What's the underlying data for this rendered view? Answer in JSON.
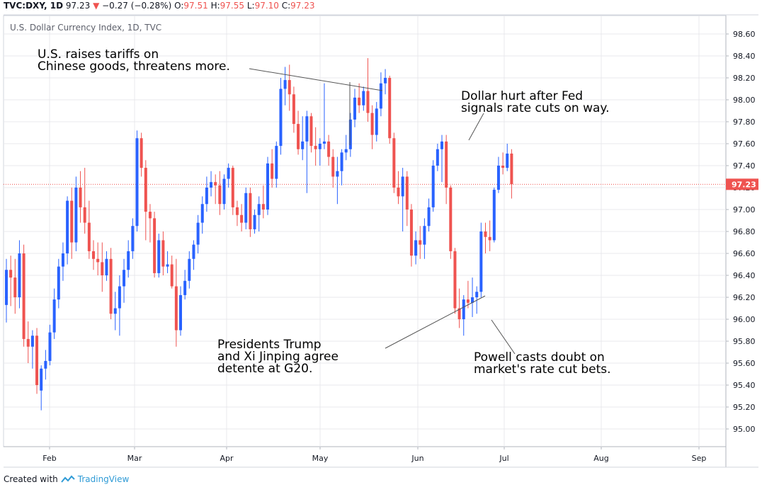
{
  "header": {
    "symbol": "TVC:DXY, 1D",
    "last": "97.23",
    "change": "−0.27 (−0.28%)",
    "o_label": "O:",
    "o_val": "97.51",
    "h_label": "H:",
    "h_val": "97.55",
    "l_label": "L:",
    "l_val": "97.10",
    "c_label": "C:",
    "c_val": "97.23",
    "arrow_icon": "down-triangle-icon"
  },
  "subtitle": "U.S. Dollar Currency Index, 1D, TVC",
  "annotations": {
    "tariffs": "U.S. raises tariffs on\nChinese goods, threatens more.",
    "fed": "Dollar hurt after Fed\nsignals rate cuts on way.",
    "g20": "Presidents Trump\nand Xi Jinping agree\ndetente at G20.",
    "powell": "Powell casts doubt on\nmarket's rate cut bets."
  },
  "footer": {
    "created": "Created with",
    "brand": "TradingView",
    "logo_icon": "tradingview-logo-icon"
  },
  "colors": {
    "up": "#2962ff",
    "down": "#ef5350",
    "grid": "#e8e9ec",
    "axis_text": "#131722",
    "last_price_bg": "#ef5350"
  },
  "chart_data": {
    "type": "candlestick",
    "title": "U.S. Dollar Currency Index, 1D, TVC",
    "ylim": [
      94.8,
      98.7
    ],
    "y_ticks": [
      "95.00",
      "95.20",
      "95.40",
      "95.60",
      "95.80",
      "96.00",
      "96.20",
      "96.40",
      "96.60",
      "96.80",
      "97.00",
      "97.20",
      "97.40",
      "97.60",
      "97.80",
      "98.00",
      "98.20",
      "98.40",
      "98.60"
    ],
    "x_ticks": [
      "Feb",
      "Mar",
      "Apr",
      "May",
      "Jun",
      "Jul",
      "Aug",
      "Sep"
    ],
    "last_price": "97.23",
    "grid": true,
    "candles": [
      {
        "o": 96.13,
        "h": 96.55,
        "l": 95.97,
        "c": 96.45
      },
      {
        "o": 96.45,
        "h": 96.58,
        "l": 96.12,
        "c": 96.38
      },
      {
        "o": 96.38,
        "h": 96.55,
        "l": 96.05,
        "c": 96.2
      },
      {
        "o": 96.2,
        "h": 96.72,
        "l": 96.1,
        "c": 96.6
      },
      {
        "o": 96.6,
        "h": 96.68,
        "l": 95.75,
        "c": 95.82
      },
      {
        "o": 95.82,
        "h": 95.98,
        "l": 95.6,
        "c": 95.75
      },
      {
        "o": 95.75,
        "h": 95.9,
        "l": 95.55,
        "c": 95.85
      },
      {
        "o": 95.85,
        "h": 95.92,
        "l": 95.32,
        "c": 95.4
      },
      {
        "o": 95.35,
        "h": 95.58,
        "l": 95.17,
        "c": 95.55
      },
      {
        "o": 95.55,
        "h": 95.72,
        "l": 95.45,
        "c": 95.62
      },
      {
        "o": 95.62,
        "h": 95.95,
        "l": 95.58,
        "c": 95.88
      },
      {
        "o": 95.88,
        "h": 96.28,
        "l": 95.82,
        "c": 96.18
      },
      {
        "o": 96.18,
        "h": 96.55,
        "l": 96.1,
        "c": 96.48
      },
      {
        "o": 96.48,
        "h": 96.7,
        "l": 96.35,
        "c": 96.6
      },
      {
        "o": 96.6,
        "h": 97.12,
        "l": 96.5,
        "c": 97.08
      },
      {
        "o": 97.08,
        "h": 97.2,
        "l": 96.55,
        "c": 96.7
      },
      {
        "o": 96.7,
        "h": 97.3,
        "l": 96.62,
        "c": 97.2
      },
      {
        "o": 97.2,
        "h": 97.35,
        "l": 96.88,
        "c": 97.02
      },
      {
        "o": 97.02,
        "h": 97.38,
        "l": 96.78,
        "c": 96.88
      },
      {
        "o": 96.88,
        "h": 97.08,
        "l": 96.55,
        "c": 96.62
      },
      {
        "o": 96.62,
        "h": 96.72,
        "l": 96.45,
        "c": 96.55
      },
      {
        "o": 96.55,
        "h": 96.7,
        "l": 96.4,
        "c": 96.52
      },
      {
        "o": 96.52,
        "h": 96.7,
        "l": 96.25,
        "c": 96.4
      },
      {
        "o": 96.4,
        "h": 96.62,
        "l": 96.35,
        "c": 96.55
      },
      {
        "o": 96.55,
        "h": 96.65,
        "l": 96.0,
        "c": 96.05
      },
      {
        "o": 96.05,
        "h": 96.25,
        "l": 95.9,
        "c": 96.1
      },
      {
        "o": 96.1,
        "h": 96.4,
        "l": 95.85,
        "c": 96.3
      },
      {
        "o": 96.3,
        "h": 96.55,
        "l": 96.15,
        "c": 96.45
      },
      {
        "o": 96.45,
        "h": 96.72,
        "l": 96.38,
        "c": 96.62
      },
      {
        "o": 96.62,
        "h": 96.92,
        "l": 96.55,
        "c": 96.85
      },
      {
        "o": 96.85,
        "h": 97.72,
        "l": 96.8,
        "c": 97.65
      },
      {
        "o": 97.65,
        "h": 97.7,
        "l": 97.3,
        "c": 97.38
      },
      {
        "o": 97.38,
        "h": 97.45,
        "l": 96.72,
        "c": 96.98
      },
      {
        "o": 96.98,
        "h": 97.05,
        "l": 96.7,
        "c": 96.92
      },
      {
        "o": 96.92,
        "h": 96.98,
        "l": 96.38,
        "c": 96.42
      },
      {
        "o": 96.42,
        "h": 96.78,
        "l": 96.38,
        "c": 96.72
      },
      {
        "o": 96.72,
        "h": 96.8,
        "l": 96.4,
        "c": 96.48
      },
      {
        "o": 96.48,
        "h": 96.62,
        "l": 96.42,
        "c": 96.5
      },
      {
        "o": 96.5,
        "h": 96.58,
        "l": 96.28,
        "c": 96.3
      },
      {
        "o": 96.3,
        "h": 96.55,
        "l": 95.75,
        "c": 95.9
      },
      {
        "o": 95.9,
        "h": 96.3,
        "l": 95.85,
        "c": 96.22
      },
      {
        "o": 96.22,
        "h": 96.45,
        "l": 96.18,
        "c": 96.35
      },
      {
        "o": 96.35,
        "h": 96.62,
        "l": 96.28,
        "c": 96.55
      },
      {
        "o": 96.55,
        "h": 96.72,
        "l": 96.45,
        "c": 96.68
      },
      {
        "o": 96.68,
        "h": 96.95,
        "l": 96.6,
        "c": 96.88
      },
      {
        "o": 96.88,
        "h": 97.12,
        "l": 96.78,
        "c": 97.05
      },
      {
        "o": 97.05,
        "h": 97.3,
        "l": 96.98,
        "c": 97.2
      },
      {
        "o": 97.2,
        "h": 97.35,
        "l": 97.12,
        "c": 97.25
      },
      {
        "o": 97.25,
        "h": 97.32,
        "l": 97.05,
        "c": 97.22
      },
      {
        "o": 97.22,
        "h": 97.35,
        "l": 96.95,
        "c": 97.05
      },
      {
        "o": 97.05,
        "h": 97.32,
        "l": 97.0,
        "c": 97.28
      },
      {
        "o": 97.28,
        "h": 97.42,
        "l": 97.2,
        "c": 97.38
      },
      {
        "o": 97.38,
        "h": 97.4,
        "l": 96.95,
        "c": 97.02
      },
      {
        "o": 97.02,
        "h": 97.08,
        "l": 96.85,
        "c": 96.95
      },
      {
        "o": 96.95,
        "h": 97.05,
        "l": 96.8,
        "c": 96.88
      },
      {
        "o": 96.88,
        "h": 97.2,
        "l": 96.82,
        "c": 97.15
      },
      {
        "o": 97.15,
        "h": 97.2,
        "l": 96.75,
        "c": 96.82
      },
      {
        "o": 96.82,
        "h": 97.0,
        "l": 96.78,
        "c": 96.95
      },
      {
        "o": 96.95,
        "h": 97.12,
        "l": 96.8,
        "c": 97.05
      },
      {
        "o": 97.05,
        "h": 97.22,
        "l": 96.92,
        "c": 97.0
      },
      {
        "o": 97.0,
        "h": 97.48,
        "l": 96.95,
        "c": 97.42
      },
      {
        "o": 97.42,
        "h": 97.55,
        "l": 97.2,
        "c": 97.28
      },
      {
        "o": 97.28,
        "h": 97.62,
        "l": 97.2,
        "c": 97.58
      },
      {
        "o": 97.58,
        "h": 98.2,
        "l": 97.5,
        "c": 98.1
      },
      {
        "o": 98.1,
        "h": 98.3,
        "l": 97.95,
        "c": 98.18
      },
      {
        "o": 98.18,
        "h": 98.32,
        "l": 97.9,
        "c": 98.05
      },
      {
        "o": 98.05,
        "h": 98.12,
        "l": 97.7,
        "c": 97.78
      },
      {
        "o": 97.78,
        "h": 97.9,
        "l": 97.5,
        "c": 97.55
      },
      {
        "o": 97.55,
        "h": 97.85,
        "l": 97.45,
        "c": 97.62
      },
      {
        "o": 97.62,
        "h": 97.9,
        "l": 97.15,
        "c": 97.85
      },
      {
        "o": 97.85,
        "h": 97.88,
        "l": 97.52,
        "c": 97.58
      },
      {
        "o": 97.58,
        "h": 97.75,
        "l": 97.4,
        "c": 97.55
      },
      {
        "o": 97.55,
        "h": 97.65,
        "l": 97.4,
        "c": 97.6
      },
      {
        "o": 97.6,
        "h": 98.15,
        "l": 97.55,
        "c": 97.62
      },
      {
        "o": 97.62,
        "h": 97.68,
        "l": 97.4,
        "c": 97.48
      },
      {
        "o": 97.48,
        "h": 97.55,
        "l": 97.2,
        "c": 97.3
      },
      {
        "o": 97.3,
        "h": 97.48,
        "l": 97.05,
        "c": 97.35
      },
      {
        "o": 97.35,
        "h": 97.55,
        "l": 97.22,
        "c": 97.52
      },
      {
        "o": 97.52,
        "h": 97.68,
        "l": 97.45,
        "c": 97.55
      },
      {
        "o": 97.55,
        "h": 97.88,
        "l": 97.48,
        "c": 97.82
      },
      {
        "o": 97.82,
        "h": 98.1,
        "l": 97.75,
        "c": 98.02
      },
      {
        "o": 98.02,
        "h": 98.15,
        "l": 97.88,
        "c": 97.95
      },
      {
        "o": 97.95,
        "h": 98.12,
        "l": 97.9,
        "c": 98.08
      },
      {
        "o": 98.08,
        "h": 98.38,
        "l": 97.8,
        "c": 97.88
      },
      {
        "o": 97.88,
        "h": 97.95,
        "l": 97.55,
        "c": 97.68
      },
      {
        "o": 97.68,
        "h": 97.98,
        "l": 97.62,
        "c": 97.92
      },
      {
        "o": 97.92,
        "h": 98.25,
        "l": 97.85,
        "c": 98.15
      },
      {
        "o": 98.15,
        "h": 98.28,
        "l": 98.05,
        "c": 98.2
      },
      {
        "o": 98.2,
        "h": 98.22,
        "l": 97.6,
        "c": 97.65
      },
      {
        "o": 97.65,
        "h": 97.7,
        "l": 97.15,
        "c": 97.2
      },
      {
        "o": 97.2,
        "h": 97.35,
        "l": 97.05,
        "c": 97.12
      },
      {
        "o": 97.12,
        "h": 97.38,
        "l": 96.8,
        "c": 97.3
      },
      {
        "o": 97.3,
        "h": 97.35,
        "l": 96.85,
        "c": 97.0
      },
      {
        "o": 97.0,
        "h": 97.05,
        "l": 96.48,
        "c": 96.58
      },
      {
        "o": 96.58,
        "h": 96.8,
        "l": 96.5,
        "c": 96.72
      },
      {
        "o": 96.72,
        "h": 96.85,
        "l": 96.55,
        "c": 96.68
      },
      {
        "o": 96.68,
        "h": 96.92,
        "l": 96.55,
        "c": 96.85
      },
      {
        "o": 96.85,
        "h": 97.1,
        "l": 96.8,
        "c": 97.02
      },
      {
        "o": 97.02,
        "h": 97.45,
        "l": 96.98,
        "c": 97.4
      },
      {
        "o": 97.4,
        "h": 97.6,
        "l": 97.35,
        "c": 97.55
      },
      {
        "o": 97.55,
        "h": 97.68,
        "l": 97.25,
        "c": 97.62
      },
      {
        "o": 97.62,
        "h": 97.68,
        "l": 97.05,
        "c": 97.2
      },
      {
        "o": 97.2,
        "h": 97.22,
        "l": 96.55,
        "c": 96.62
      },
      {
        "o": 96.62,
        "h": 96.65,
        "l": 96.05,
        "c": 96.1
      },
      {
        "o": 96.1,
        "h": 96.28,
        "l": 95.92,
        "c": 96.0
      },
      {
        "o": 96.0,
        "h": 96.22,
        "l": 95.85,
        "c": 96.18
      },
      {
        "o": 96.18,
        "h": 96.35,
        "l": 96.1,
        "c": 96.15
      },
      {
        "o": 96.15,
        "h": 96.38,
        "l": 96.02,
        "c": 96.2
      },
      {
        "o": 96.2,
        "h": 96.3,
        "l": 96.05,
        "c": 96.25
      },
      {
        "o": 96.25,
        "h": 96.88,
        "l": 96.2,
        "c": 96.8
      },
      {
        "o": 96.8,
        "h": 96.88,
        "l": 96.6,
        "c": 96.75
      },
      {
        "o": 96.75,
        "h": 96.9,
        "l": 96.62,
        "c": 96.72
      },
      {
        "o": 96.72,
        "h": 97.2,
        "l": 96.7,
        "c": 97.18
      },
      {
        "o": 97.18,
        "h": 97.48,
        "l": 97.15,
        "c": 97.4
      },
      {
        "o": 97.4,
        "h": 97.52,
        "l": 97.32,
        "c": 97.38
      },
      {
        "o": 97.38,
        "h": 97.6,
        "l": 97.35,
        "c": 97.51
      },
      {
        "o": 97.51,
        "h": 97.55,
        "l": 97.1,
        "c": 97.23
      }
    ]
  }
}
